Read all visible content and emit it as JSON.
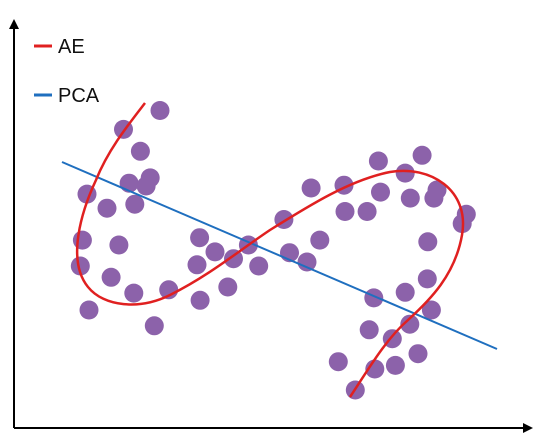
{
  "legend": [
    {
      "label": "AE",
      "color": "#e02020"
    },
    {
      "label": "PCA",
      "color": "#1f6fbf"
    }
  ],
  "point_color": "#8c62aa",
  "axis_color": "#000000",
  "chart_data": {
    "type": "scatter",
    "title": "",
    "xlabel": "",
    "ylabel": "",
    "grid": false,
    "legend_position": "top-left",
    "xlim": [
      0,
      100
    ],
    "ylim": [
      0,
      100
    ],
    "points": [
      {
        "x": 21.3,
        "y": 73.9
      },
      {
        "x": 28.4,
        "y": 78.6
      },
      {
        "x": 24.6,
        "y": 68.5
      },
      {
        "x": 26.5,
        "y": 61.9
      },
      {
        "x": 22.4,
        "y": 60.6
      },
      {
        "x": 25.7,
        "y": 59.9
      },
      {
        "x": 14.2,
        "y": 57.9
      },
      {
        "x": 18.1,
        "y": 54.4
      },
      {
        "x": 23.5,
        "y": 55.4
      },
      {
        "x": 13.3,
        "y": 46.5
      },
      {
        "x": 20.4,
        "y": 45.3
      },
      {
        "x": 12.9,
        "y": 40.1
      },
      {
        "x": 18.9,
        "y": 37.3
      },
      {
        "x": 23.3,
        "y": 33.4
      },
      {
        "x": 14.6,
        "y": 29.2
      },
      {
        "x": 30.1,
        "y": 34.2
      },
      {
        "x": 27.3,
        "y": 25.3
      },
      {
        "x": 36.2,
        "y": 31.6
      },
      {
        "x": 41.6,
        "y": 34.9
      },
      {
        "x": 35.6,
        "y": 40.4
      },
      {
        "x": 36.1,
        "y": 47.1
      },
      {
        "x": 39.1,
        "y": 43.6
      },
      {
        "x": 42.7,
        "y": 41.9
      },
      {
        "x": 45.6,
        "y": 45.3
      },
      {
        "x": 47.6,
        "y": 40.1
      },
      {
        "x": 52.5,
        "y": 51.6
      },
      {
        "x": 53.6,
        "y": 43.4
      },
      {
        "x": 57.0,
        "y": 41.1
      },
      {
        "x": 59.5,
        "y": 46.5
      },
      {
        "x": 57.8,
        "y": 59.4
      },
      {
        "x": 64.2,
        "y": 60.1
      },
      {
        "x": 64.4,
        "y": 53.6
      },
      {
        "x": 68.7,
        "y": 53.6
      },
      {
        "x": 71.3,
        "y": 58.4
      },
      {
        "x": 70.9,
        "y": 66.1
      },
      {
        "x": 76.1,
        "y": 63.1
      },
      {
        "x": 79.4,
        "y": 67.5
      },
      {
        "x": 77.1,
        "y": 56.9
      },
      {
        "x": 81.7,
        "y": 56.9
      },
      {
        "x": 82.3,
        "y": 58.9
      },
      {
        "x": 87.2,
        "y": 50.6
      },
      {
        "x": 88.0,
        "y": 52.9
      },
      {
        "x": 80.5,
        "y": 46.1
      },
      {
        "x": 80.4,
        "y": 36.9
      },
      {
        "x": 76.1,
        "y": 33.6
      },
      {
        "x": 81.2,
        "y": 29.2
      },
      {
        "x": 70.0,
        "y": 32.2
      },
      {
        "x": 69.1,
        "y": 24.3
      },
      {
        "x": 73.6,
        "y": 22.1
      },
      {
        "x": 77.0,
        "y": 25.7
      },
      {
        "x": 78.6,
        "y": 18.4
      },
      {
        "x": 74.2,
        "y": 15.5
      },
      {
        "x": 70.2,
        "y": 14.6
      },
      {
        "x": 63.1,
        "y": 16.4
      },
      {
        "x": 66.4,
        "y": 9.4
      }
    ]
  }
}
